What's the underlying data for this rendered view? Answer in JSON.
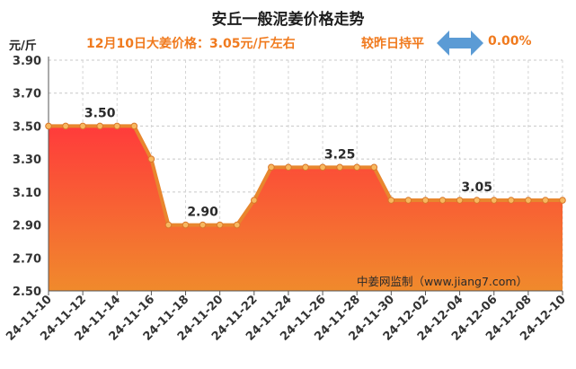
{
  "chart_data": {
    "type": "area",
    "title": "安丘一般泥姜价格走势",
    "ylabel": "元/斤",
    "ylim": [
      2.5,
      3.9
    ],
    "yticks": [
      "3.90",
      "3.70",
      "3.50",
      "3.30",
      "3.10",
      "2.90",
      "2.70",
      "2.50"
    ],
    "x_tick_labels": [
      "24-11-10",
      "24-11-12",
      "24-11-14",
      "24-11-16",
      "24-11-18",
      "24-11-20",
      "24-11-22",
      "24-11-24",
      "24-11-26",
      "24-11-28",
      "24-11-30",
      "24-12-02",
      "24-12-04",
      "24-12-06",
      "24-12-08",
      "24-12-10"
    ],
    "x": [
      "24-11-10",
      "24-11-11",
      "24-11-12",
      "24-11-13",
      "24-11-14",
      "24-11-15",
      "24-11-16",
      "24-11-17",
      "24-11-18",
      "24-11-19",
      "24-11-20",
      "24-11-21",
      "24-11-22",
      "24-11-23",
      "24-11-24",
      "24-11-25",
      "24-11-26",
      "24-11-27",
      "24-11-28",
      "24-11-29",
      "24-11-30",
      "24-12-01",
      "24-12-02",
      "24-12-03",
      "24-12-04",
      "24-12-05",
      "24-12-06",
      "24-12-07",
      "24-12-08",
      "24-12-09",
      "24-12-10"
    ],
    "values": [
      3.5,
      3.5,
      3.5,
      3.5,
      3.5,
      3.5,
      3.3,
      2.9,
      2.9,
      2.9,
      2.9,
      2.9,
      3.05,
      3.25,
      3.25,
      3.25,
      3.25,
      3.25,
      3.25,
      3.25,
      3.05,
      3.05,
      3.05,
      3.05,
      3.05,
      3.05,
      3.05,
      3.05,
      3.05,
      3.05,
      3.05
    ],
    "data_labels": [
      {
        "index": 3,
        "text": "3.50"
      },
      {
        "index": 9,
        "text": "2.90"
      },
      {
        "index": 17,
        "text": "3.25"
      },
      {
        "index": 25,
        "text": "3.05"
      }
    ],
    "grid": true,
    "colors": {
      "fill_top": "#ff3b3b",
      "fill_bottom": "#f08a2c",
      "line": "#e8862e",
      "marker_fill": "#f7b860"
    }
  },
  "header": {
    "price_text": "12月10日大姜价格：3.05元/斤左右",
    "change_label": "较昨日持平",
    "change_value": "0.00%",
    "arrow_icon": "double-arrow-icon",
    "arrow_color": "#5b9bd5"
  },
  "watermark": "中姜网监制（www.jiang7.com）"
}
